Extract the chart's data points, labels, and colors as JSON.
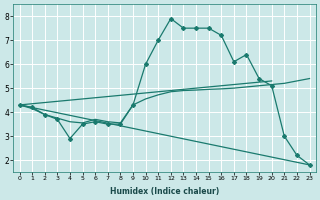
{
  "xlabel": "Humidex (Indice chaleur)",
  "bg_color": "#cce8e8",
  "grid_color": "#b0d0d0",
  "line_color": "#1a7a6e",
  "x_ticks": [
    0,
    1,
    2,
    3,
    4,
    5,
    6,
    7,
    8,
    9,
    10,
    11,
    12,
    13,
    14,
    15,
    16,
    17,
    18,
    19,
    20,
    21,
    22,
    23
  ],
  "ylim": [
    1.5,
    8.5
  ],
  "xlim": [
    -0.5,
    23.5
  ],
  "yticks": [
    2,
    3,
    4,
    5,
    6,
    7,
    8
  ],
  "series1_x": [
    0,
    1,
    2,
    3,
    4,
    5,
    6,
    7,
    8,
    9,
    10,
    11,
    12,
    13,
    14,
    15,
    16,
    17,
    18,
    19,
    20,
    21,
    22,
    23
  ],
  "series1_y": [
    4.3,
    4.2,
    3.9,
    3.7,
    2.9,
    3.5,
    3.6,
    3.5,
    3.5,
    4.3,
    6.0,
    7.0,
    7.9,
    7.5,
    7.5,
    7.5,
    7.2,
    6.1,
    6.4,
    5.4,
    5.1,
    3.0,
    2.2,
    1.8
  ],
  "series2_x": [
    0,
    20
  ],
  "series2_y": [
    4.3,
    5.3
  ],
  "series3_x": [
    0,
    23
  ],
  "series3_y": [
    4.3,
    1.8
  ],
  "series4_x": [
    0,
    1,
    2,
    3,
    4,
    5,
    6,
    7,
    8,
    9,
    10,
    11,
    12,
    13,
    14,
    15,
    16,
    17,
    18,
    19,
    20,
    21,
    22,
    23
  ],
  "series4_y": [
    4.3,
    4.15,
    3.9,
    3.75,
    3.6,
    3.55,
    3.7,
    3.6,
    3.55,
    4.3,
    4.55,
    4.72,
    4.85,
    4.9,
    4.92,
    4.95,
    4.97,
    5.0,
    5.05,
    5.1,
    5.15,
    5.2,
    5.3,
    5.4
  ]
}
